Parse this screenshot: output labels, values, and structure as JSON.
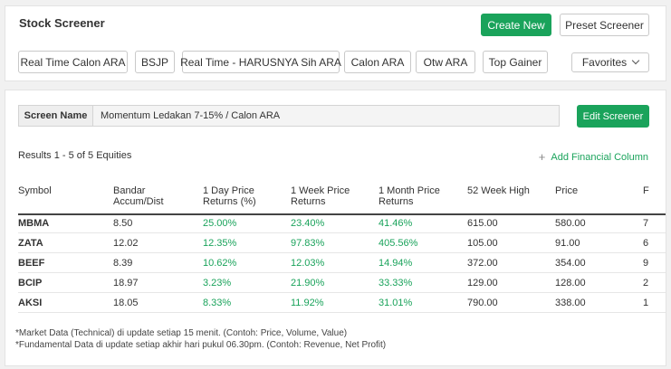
{
  "header": {
    "title": "Stock Screener",
    "create_new_label": "Create New",
    "preset_screener_label": "Preset Screener"
  },
  "presets": [
    "Real Time Calon ARA",
    "BSJP",
    "Real Time - HARUSNYA Sih ARA",
    "Calon ARA",
    "Otw ARA",
    "Top Gainer"
  ],
  "favorites_label": "Favorites",
  "screen": {
    "label": "Screen Name",
    "value": "Momentum Ledakan 7-15% / Calon ARA",
    "edit_label": "Edit Screener"
  },
  "results_text": "Results 1 - 5 of 5 Equities",
  "add_column_label": "Add Financial Column",
  "columns": [
    "Symbol",
    "Bandar Accum/Dist",
    "1 Day Price Returns (%)",
    "1 Week Price Returns",
    "1 Month Price Returns",
    "52 Week High",
    "Price",
    "F"
  ],
  "rows": [
    {
      "symbol": "MBMA",
      "bandar": "8.50",
      "day": "25.00%",
      "week": "23.40%",
      "month": "41.46%",
      "high52": "615.00",
      "price": "580.00",
      "extra": "7"
    },
    {
      "symbol": "ZATA",
      "bandar": "12.02",
      "day": "12.35%",
      "week": "97.83%",
      "month": "405.56%",
      "high52": "105.00",
      "price": "91.00",
      "extra": "6"
    },
    {
      "symbol": "BEEF",
      "bandar": "8.39",
      "day": "10.62%",
      "week": "12.03%",
      "month": "14.94%",
      "high52": "372.00",
      "price": "354.00",
      "extra": "9"
    },
    {
      "symbol": "BCIP",
      "bandar": "18.97",
      "day": "3.23%",
      "week": "21.90%",
      "month": "33.33%",
      "high52": "129.00",
      "price": "128.00",
      "extra": "2"
    },
    {
      "symbol": "AKSI",
      "bandar": "18.05",
      "day": "8.33%",
      "week": "11.92%",
      "month": "31.01%",
      "high52": "790.00",
      "price": "338.00",
      "extra": "1"
    }
  ],
  "notes": [
    "*Market Data (Technical) di update setiap 15 menit. (Contoh: Price, Volume, Value)",
    "*Fundamental Data di update setiap akhir hari pukul 06.30pm. (Contoh: Revenue, Net Profit)"
  ],
  "colors": {
    "accent": "#1aa35b"
  }
}
